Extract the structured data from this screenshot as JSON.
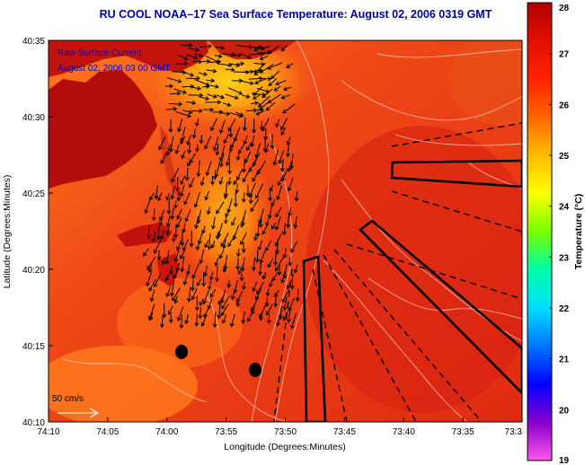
{
  "title": "RU COOL  NOAA–17  Sea Surface Temperature:  August 02, 2006 0319 GMT",
  "inset": {
    "line1": "Raw Surface Current",
    "line2": "August 02, 2006 03 00 GMT"
  },
  "axes": {
    "xlabel": "Longitude (Degrees:Minutes)",
    "ylabel": "Latitude (Degrees:Minutes)",
    "x_ticks": [
      "74:10",
      "74:05",
      "74:00",
      "73:55",
      "73:50",
      "73:45",
      "73:40",
      "73:35",
      "73:3"
    ],
    "y_ticks": [
      "40:35",
      "40:30",
      "40:25",
      "40:20",
      "40:15",
      "40:10"
    ]
  },
  "scale_arrow": {
    "label": "50 cm/s"
  },
  "colorbar": {
    "label": "Temperature (°C)",
    "min": 19,
    "max": 28,
    "ticks": [
      "28",
      "27",
      "26",
      "25",
      "24",
      "23",
      "22",
      "21",
      "20",
      "19"
    ],
    "colors": [
      "#ff55ee",
      "#8800cc",
      "#0000ff",
      "#0077ff",
      "#00ddff",
      "#00ffaa",
      "#77ff00",
      "#ffff00",
      "#ffbb00",
      "#ff6600",
      "#ff2200",
      "#e01000",
      "#b00000"
    ]
  },
  "colors": {
    "water_warm": "#e23015",
    "water_cool": "#f6961c",
    "land": "#b40b0b",
    "title_text": "#0000aa",
    "inset_text": "#0000cc"
  }
}
